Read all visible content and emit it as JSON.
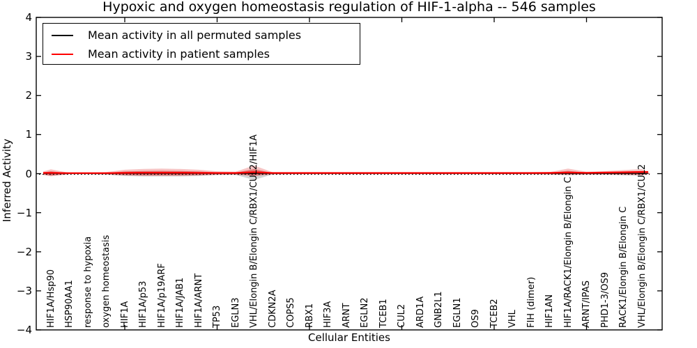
{
  "title": "Hypoxic and oxygen homeostasis regulation of HIF-1-alpha -- 546 samples",
  "legend": {
    "items": [
      {
        "label": "Mean activity in all permuted samples",
        "color": "#000000"
      },
      {
        "label": "Mean activity in patient samples",
        "color": "#ff0000"
      }
    ],
    "position": "upper left"
  },
  "chart_data": {
    "type": "line",
    "title": "Hypoxic and oxygen homeostasis regulation of HIF-1-alpha -- 546 samples",
    "xlabel": "Cellular Entities",
    "ylabel": "Inferred Activity",
    "ylim": [
      -4,
      4
    ],
    "grid": false,
    "legend_position": "upper left",
    "yticks": [
      {
        "value": 4,
        "label": "4"
      },
      {
        "value": 3,
        "label": "3"
      },
      {
        "value": 2,
        "label": "2"
      },
      {
        "value": 1,
        "label": "1"
      },
      {
        "value": 0,
        "label": "0"
      },
      {
        "value": -1,
        "label": "−1"
      },
      {
        "value": -2,
        "label": "−2"
      },
      {
        "value": -3,
        "label": "−3"
      },
      {
        "value": -4,
        "label": "−4"
      }
    ],
    "x_major_tick_positions": [
      5,
      10,
      15,
      20,
      25,
      30
    ],
    "categories": [
      "HIF1A/Hsp90",
      "HSP90AA1",
      "response to hypoxia",
      "oxygen homeostasis",
      "HIF1A",
      "HIF1A/p53",
      "HIF1A/p19ARF",
      "HIF1A/JAB1",
      "HIF1A/ARNT",
      "TP53",
      "EGLN3",
      "VHL/Elongin B/Elongin C/RBX1/CUL2/HIF1A",
      "CDKN2A",
      "COPS5",
      "RBX1",
      "HIF3A",
      "ARNT",
      "EGLN2",
      "TCEB1",
      "CUL2",
      "ARD1A",
      "GNB2L1",
      "EGLN1",
      "OS9",
      "TCEB2",
      "VHL",
      "FIH (dimer)",
      "HIF1AN",
      "HIF1A/RACK1/Elongin B/Elongin C",
      "ARNT/IPAS",
      "PHD1-3/OS9",
      "RACK1/Elongin B/Elongin C",
      "VHL/Elongin B/Elongin C/RBX1/CUL2"
    ],
    "reference_line": {
      "y": 0,
      "style": "dotted",
      "color": "#000000"
    },
    "series": [
      {
        "name": "Mean activity in all permuted samples",
        "color": "#000000",
        "style": "solid",
        "values": [
          0.005,
          0.005,
          0.005,
          0.005,
          0.005,
          0.005,
          0.005,
          0.005,
          0.005,
          0.005,
          0.005,
          0.005,
          0.005,
          0.005,
          0.005,
          0.005,
          0.005,
          0.005,
          0.005,
          0.005,
          0.005,
          0.005,
          0.005,
          0.005,
          0.005,
          0.005,
          0.005,
          0.005,
          0.005,
          0.005,
          0.005,
          0.005,
          0.005
        ]
      },
      {
        "name": "Mean activity in patient samples",
        "color": "#ff0000",
        "style": "solid",
        "values": [
          0.02,
          0.015,
          0.015,
          0.015,
          0.02,
          0.025,
          0.025,
          0.025,
          0.02,
          0.018,
          0.018,
          0.04,
          0.018,
          0.018,
          0.018,
          0.018,
          0.018,
          0.018,
          0.018,
          0.018,
          0.018,
          0.018,
          0.018,
          0.018,
          0.018,
          0.018,
          0.018,
          0.02,
          0.03,
          0.022,
          0.028,
          0.035,
          0.045
        ]
      }
    ],
    "bands": [
      {
        "name": "permuted-samples-spread",
        "color": "#8c8c8c",
        "upper": [
          0.04,
          0.012,
          0.012,
          0.02,
          0.035,
          0.04,
          0.045,
          0.04,
          0.035,
          0.02,
          0.02,
          0.06,
          0.015,
          0.012,
          0.012,
          0.012,
          0.012,
          0.012,
          0.012,
          0.012,
          0.012,
          0.012,
          0.012,
          0.012,
          0.012,
          0.012,
          0.012,
          0.02,
          0.03,
          0.02,
          0.02,
          0.03,
          0.035
        ],
        "lower": [
          -0.05,
          -0.015,
          -0.015,
          -0.025,
          -0.06,
          -0.07,
          -0.07,
          -0.07,
          -0.06,
          -0.03,
          -0.03,
          -0.16,
          -0.02,
          -0.015,
          -0.015,
          -0.015,
          -0.015,
          -0.015,
          -0.015,
          -0.015,
          -0.015,
          -0.015,
          -0.015,
          -0.015,
          -0.015,
          -0.015,
          -0.015,
          -0.02,
          -0.04,
          -0.025,
          -0.025,
          -0.04,
          -0.05
        ]
      },
      {
        "name": "patient-samples-spread",
        "color": "#e23b3b",
        "inner_color": "#c81616",
        "upper": [
          0.11,
          0.02,
          0.02,
          0.04,
          0.1,
          0.12,
          0.13,
          0.12,
          0.1,
          0.06,
          0.05,
          0.21,
          0.035,
          0.03,
          0.025,
          0.025,
          0.025,
          0.025,
          0.025,
          0.025,
          0.025,
          0.025,
          0.025,
          0.025,
          0.025,
          0.025,
          0.025,
          0.04,
          0.13,
          0.05,
          0.065,
          0.09,
          0.115
        ],
        "lower": [
          -0.07,
          -0.015,
          -0.015,
          -0.02,
          -0.05,
          -0.06,
          -0.06,
          -0.06,
          -0.05,
          -0.03,
          -0.025,
          -0.07,
          -0.02,
          -0.015,
          -0.015,
          -0.015,
          -0.015,
          -0.015,
          -0.015,
          -0.015,
          -0.015,
          -0.015,
          -0.015,
          -0.015,
          -0.015,
          -0.015,
          -0.015,
          -0.02,
          -0.03,
          -0.02,
          -0.02,
          -0.03,
          -0.04
        ]
      }
    ]
  }
}
